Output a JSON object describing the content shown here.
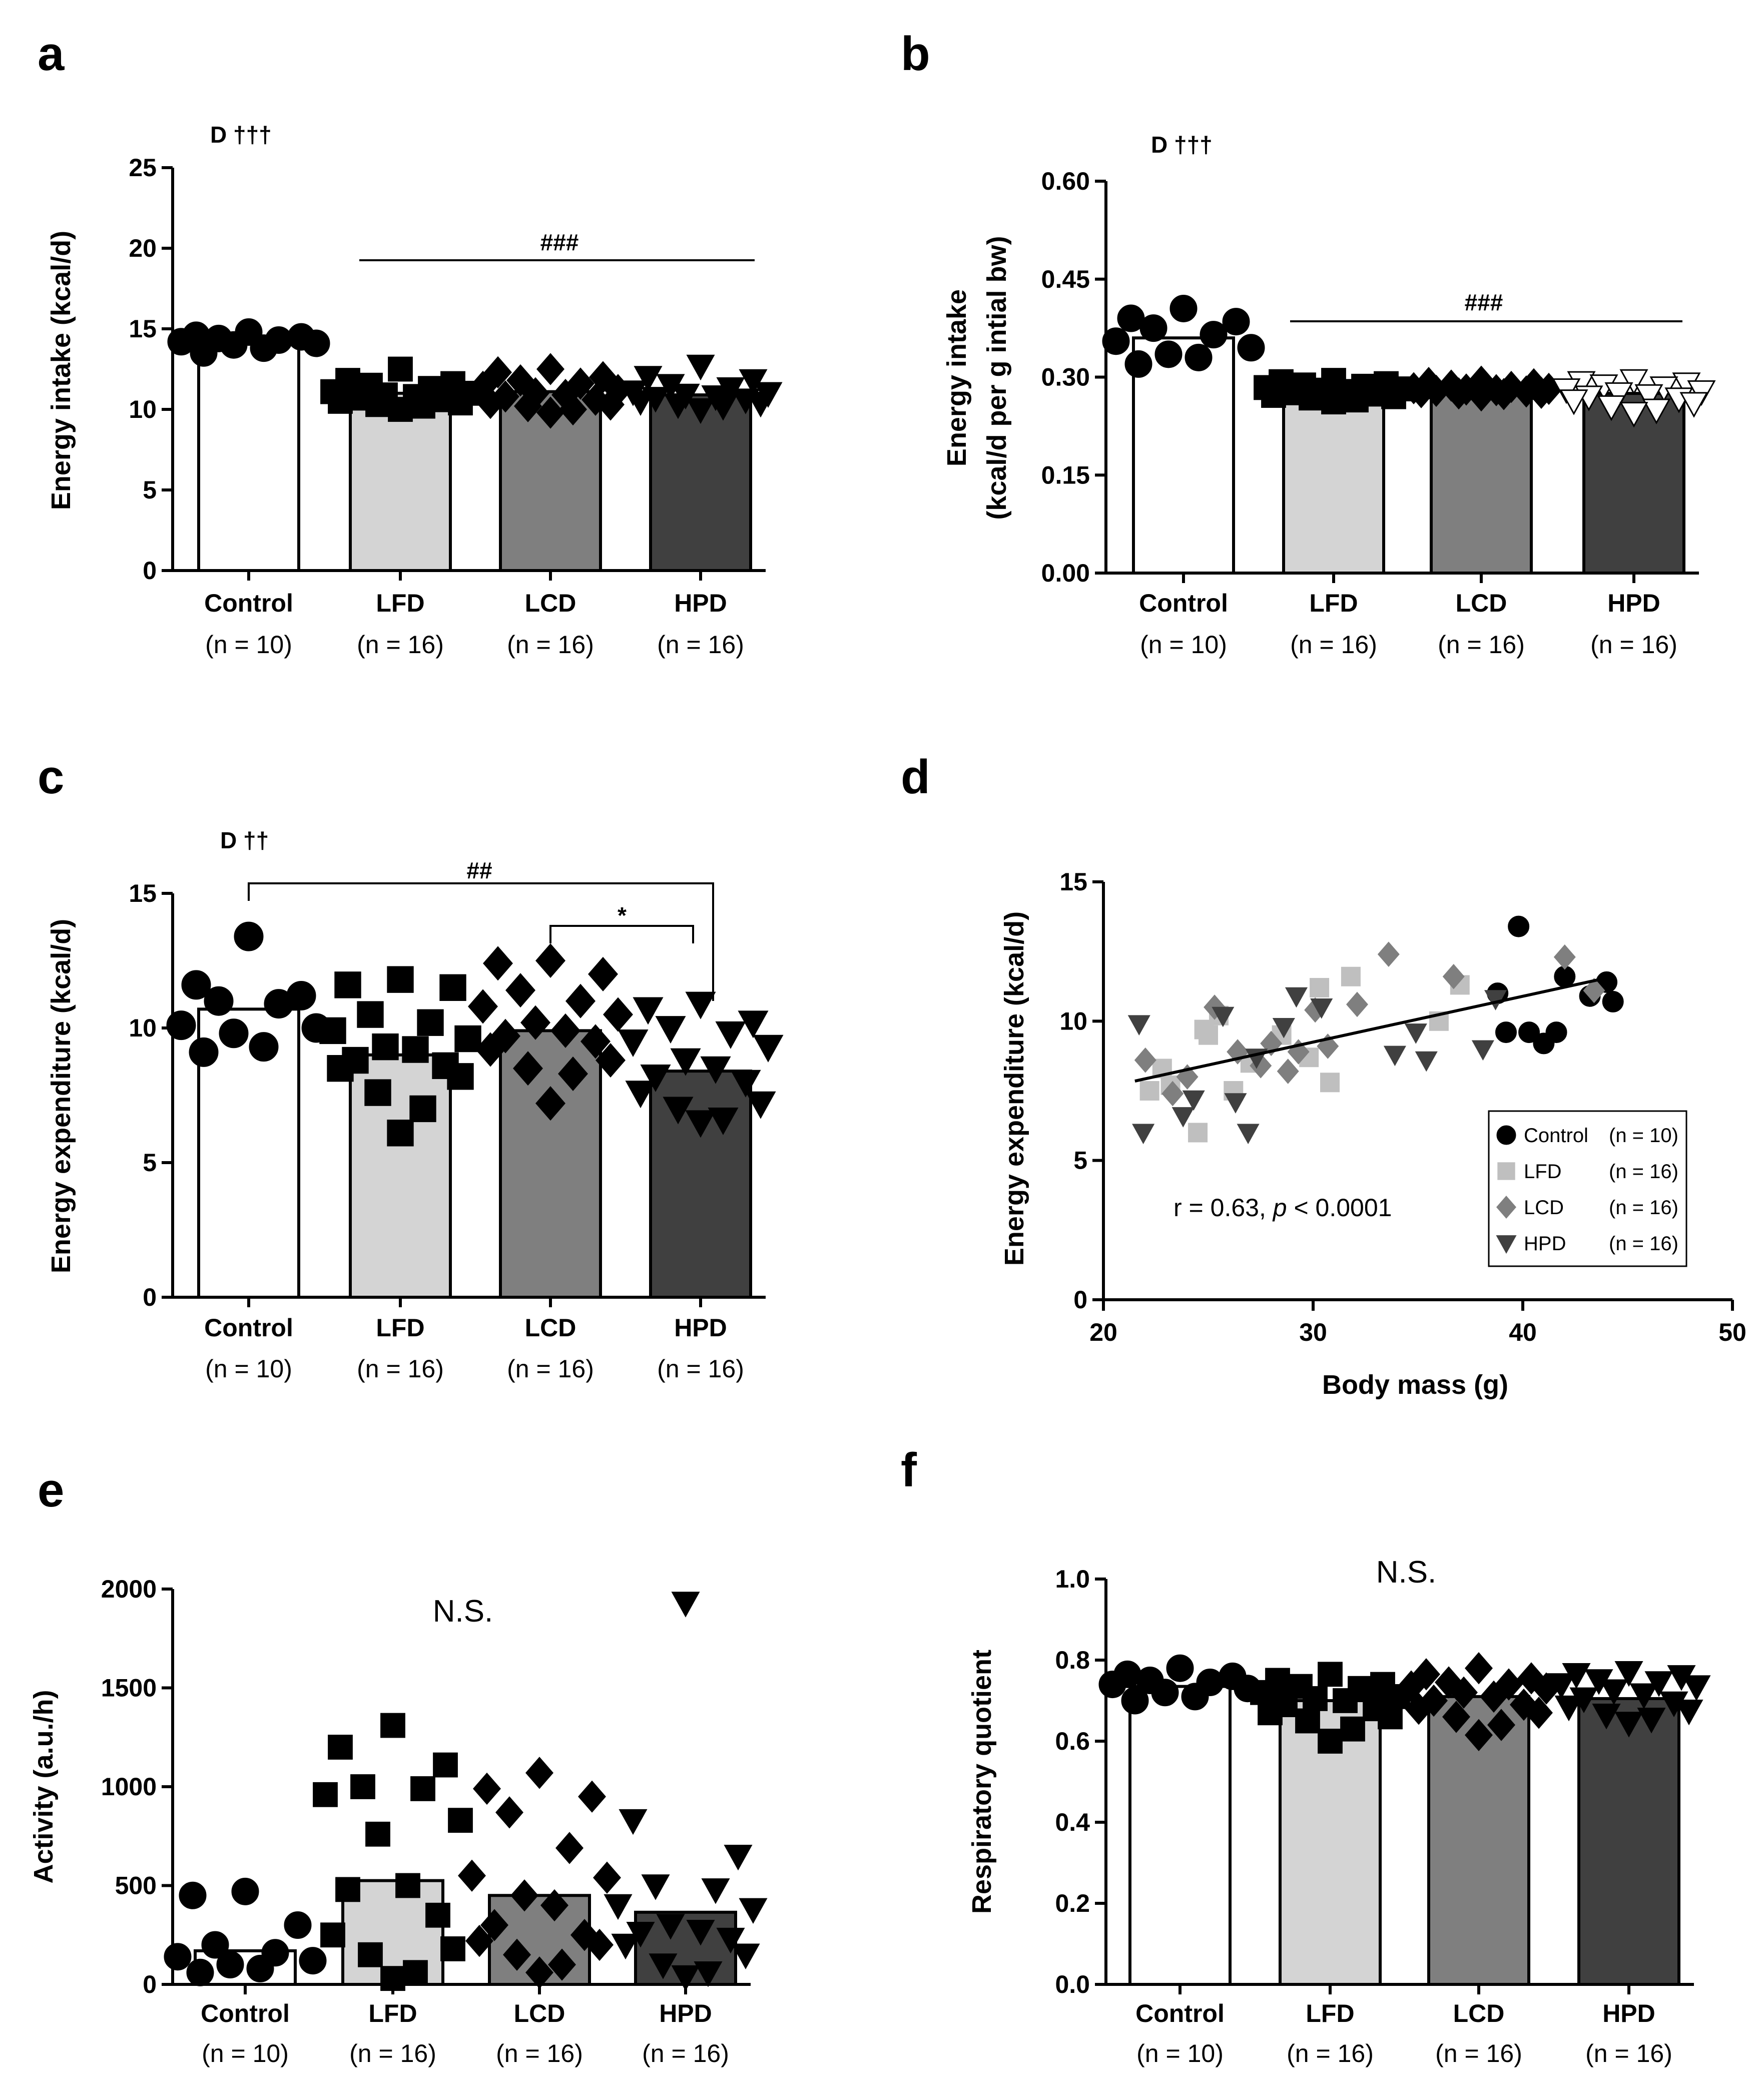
{
  "n_labels": [
    "(n = 10)",
    "(n = 16)",
    "(n = 16)",
    "(n = 16)"
  ],
  "chart_data": [
    {
      "id": "a",
      "panel_letter": "a",
      "type": "bar",
      "categories": [
        "Control",
        "LFD",
        "LCD",
        "HPD"
      ],
      "values": [
        14.2,
        11.0,
        11.1,
        10.9
      ],
      "points": [
        [
          14.8,
          14.6,
          14.5,
          14.4,
          14.3,
          14.2,
          14.1,
          14.0,
          13.8,
          13.5
        ],
        [
          12.5,
          11.8,
          11.6,
          11.5,
          11.3,
          11.1,
          11.0,
          10.9,
          10.8,
          10.7,
          10.6,
          10.5,
          10.4,
          10.3,
          10.2,
          10.0
        ],
        [
          12.5,
          12.3,
          12.0,
          11.8,
          11.6,
          11.4,
          11.2,
          11.0,
          10.9,
          10.8,
          10.6,
          10.4,
          10.3,
          10.2,
          10.0,
          9.8
        ],
        [
          12.7,
          12.0,
          11.8,
          11.5,
          11.3,
          11.1,
          11.0,
          10.9,
          10.8,
          10.7,
          10.6,
          10.5,
          10.4,
          10.3,
          10.2,
          10.0
        ]
      ],
      "ylabel": "Energy intake (kcal/d)",
      "ylim": [
        0,
        25
      ],
      "yticks": [
        "0",
        "5",
        "10",
        "15",
        "20",
        "25"
      ],
      "markers": [
        "circle",
        "square",
        "diamond",
        "triangle-down"
      ],
      "bar_colors": [
        "#ffffff",
        "#d4d4d4",
        "#7f7f7f",
        "#404040"
      ],
      "point_colors": [
        "#000000",
        "#000000",
        "#000000",
        "#000000"
      ],
      "corner_annotation": "D †††",
      "bracket_label": "###"
    },
    {
      "id": "b",
      "panel_letter": "b",
      "type": "bar",
      "categories": [
        "Control",
        "LFD",
        "LCD",
        "HPD"
      ],
      "values": [
        0.36,
        0.28,
        0.28,
        0.275
      ],
      "points": [
        [
          0.405,
          0.39,
          0.385,
          0.375,
          0.365,
          0.355,
          0.345,
          0.335,
          0.33,
          0.32
        ],
        [
          0.295,
          0.293,
          0.29,
          0.288,
          0.286,
          0.284,
          0.282,
          0.28,
          0.278,
          0.276,
          0.274,
          0.272,
          0.27,
          0.268,
          0.265,
          0.262
        ],
        [
          0.293,
          0.291,
          0.289,
          0.287,
          0.285,
          0.283,
          0.282,
          0.281,
          0.28,
          0.279,
          0.278,
          0.277,
          0.276,
          0.275,
          0.274,
          0.272
        ],
        [
          0.295,
          0.292,
          0.29,
          0.287,
          0.284,
          0.281,
          0.278,
          0.275,
          0.272,
          0.27,
          0.267,
          0.264,
          0.26,
          0.255,
          0.25,
          0.245
        ]
      ],
      "ylabel": "Energy intake",
      "ylabel2": "(kcal/d per g intial bw)",
      "ylim": [
        0,
        0.6
      ],
      "yticks": [
        "0.00",
        "0.15",
        "0.30",
        "0.45",
        "0.60"
      ],
      "markers": [
        "circle",
        "square",
        "diamond",
        "triangle-down"
      ],
      "bar_colors": [
        "#ffffff",
        "#d4d4d4",
        "#7f7f7f",
        "#404040"
      ],
      "point_colors": [
        "#000000",
        "#000000",
        "#000000",
        "#ffffff"
      ],
      "corner_annotation": "D †††",
      "bracket_label": "###"
    },
    {
      "id": "c",
      "panel_letter": "c",
      "type": "bar",
      "categories": [
        "Control",
        "LFD",
        "LCD",
        "HPD"
      ],
      "values": [
        10.7,
        9.0,
        9.9,
        8.4
      ],
      "points": [
        [
          13.4,
          11.6,
          11.2,
          11.0,
          10.9,
          10.1,
          10.0,
          9.8,
          9.3,
          9.1
        ],
        [
          11.8,
          11.6,
          11.5,
          10.5,
          10.2,
          9.9,
          9.6,
          9.3,
          9.2,
          8.8,
          8.6,
          8.5,
          8.2,
          7.6,
          7.0,
          6.1
        ],
        [
          12.5,
          12.4,
          12.0,
          11.4,
          11.0,
          10.8,
          10.5,
          10.2,
          9.9,
          9.7,
          9.5,
          9.2,
          8.8,
          8.5,
          8.3,
          7.2
        ],
        [
          10.9,
          10.7,
          10.2,
          10.0,
          9.8,
          9.5,
          9.3,
          8.8,
          8.5,
          8.2,
          8.0,
          7.6,
          7.2,
          7.0,
          6.6,
          6.5
        ]
      ],
      "ylabel": "Energy expenditure (kcal/d)",
      "ylim": [
        0,
        15
      ],
      "yticks": [
        "0",
        "5",
        "10",
        "15"
      ],
      "markers": [
        "circle",
        "square",
        "diamond",
        "triangle-down"
      ],
      "bar_colors": [
        "#ffffff",
        "#d4d4d4",
        "#7f7f7f",
        "#404040"
      ],
      "point_colors": [
        "#000000",
        "#000000",
        "#000000",
        "#000000"
      ],
      "corner_annotation": "D ††",
      "bracket_label": "##",
      "bracket2_label": "*"
    },
    {
      "id": "d",
      "panel_letter": "d",
      "type": "scatter",
      "xlabel": "Body mass (g)",
      "ylabel": "Energy expenditure (kcal/d)",
      "xlim": [
        20,
        50
      ],
      "ylim": [
        0,
        15
      ],
      "xticks": [
        "20",
        "30",
        "40",
        "50"
      ],
      "yticks": [
        "0",
        "5",
        "10",
        "15"
      ],
      "annotation_prefix": "r = 0.63, ",
      "annotation_p": "p",
      "annotation_suffix": " < 0.0001",
      "fit_line": {
        "x": [
          21.5,
          44.0
        ],
        "y": [
          7.85,
          11.55
        ]
      },
      "series": [
        {
          "name": "Control",
          "legend_n": "(n = 10)",
          "marker": "circle",
          "color": "#000000",
          "x": [
            38.8,
            39.2,
            39.8,
            40.3,
            41.0,
            41.6,
            42.0,
            43.2,
            44.0,
            44.3
          ],
          "y": [
            11.0,
            9.6,
            13.4,
            9.6,
            9.2,
            9.6,
            11.6,
            10.9,
            11.4,
            10.7
          ]
        },
        {
          "name": "LFD",
          "legend_n": "(n = 16)",
          "marker": "square",
          "color": "#bfbfbf",
          "x": [
            22.2,
            22.8,
            23.2,
            24.5,
            25.0,
            25.5,
            26.2,
            27.0,
            28.5,
            29.8,
            30.3,
            30.8,
            31.8,
            36.0,
            37.0,
            24.8
          ],
          "y": [
            7.5,
            8.3,
            7.7,
            6.0,
            9.5,
            10.2,
            7.5,
            8.5,
            9.5,
            8.7,
            11.2,
            7.8,
            11.6,
            10.0,
            11.3,
            9.7
          ]
        },
        {
          "name": "LCD",
          "legend_n": "(n = 16)",
          "marker": "diamond",
          "color": "#7f7f7f",
          "x": [
            22.0,
            23.3,
            24.0,
            25.3,
            26.4,
            27.5,
            28.0,
            28.8,
            29.3,
            30.1,
            30.7,
            32.1,
            33.6,
            36.7,
            42.0,
            43.4
          ],
          "y": [
            8.6,
            7.4,
            8.0,
            10.5,
            8.9,
            8.4,
            9.2,
            8.2,
            8.9,
            10.4,
            9.1,
            10.6,
            12.4,
            11.6,
            12.3,
            11.1
          ]
        },
        {
          "name": "HPD",
          "legend_n": "(n = 16)",
          "marker": "triangle-down",
          "color": "#404040",
          "x": [
            21.7,
            21.9,
            23.8,
            24.3,
            26.3,
            26.9,
            27.3,
            28.6,
            29.2,
            30.4,
            33.9,
            34.9,
            35.4,
            38.1,
            25.7,
            38.7
          ],
          "y": [
            9.9,
            6.0,
            6.6,
            7.2,
            7.1,
            6.0,
            8.7,
            9.8,
            10.9,
            10.5,
            8.8,
            9.6,
            8.6,
            9.0,
            10.2,
            10.8
          ]
        }
      ]
    },
    {
      "id": "e",
      "panel_letter": "e",
      "type": "bar",
      "categories": [
        "Control",
        "LFD",
        "LCD",
        "HPD"
      ],
      "values": [
        170,
        525,
        450,
        365
      ],
      "points": [
        [
          470,
          450,
          300,
          200,
          160,
          140,
          120,
          100,
          80,
          60
        ],
        [
          1310,
          1200,
          1110,
          1000,
          990,
          960,
          830,
          760,
          500,
          480,
          350,
          250,
          180,
          150,
          60,
          30
        ],
        [
          1070,
          990,
          950,
          870,
          690,
          550,
          540,
          450,
          400,
          300,
          250,
          220,
          200,
          150,
          100,
          60
        ],
        [
          1930,
          830,
          650,
          500,
          480,
          400,
          380,
          300,
          270,
          260,
          230,
          200,
          150,
          100,
          60,
          40
        ]
      ],
      "ylabel": "Activity (a.u./h)",
      "ylim": [
        0,
        2000
      ],
      "yticks": [
        "0",
        "500",
        "1000",
        "1500",
        "2000"
      ],
      "markers": [
        "circle",
        "square",
        "diamond",
        "triangle-down"
      ],
      "bar_colors": [
        "#ffffff",
        "#d4d4d4",
        "#7f7f7f",
        "#404040"
      ],
      "point_colors": [
        "#000000",
        "#000000",
        "#000000",
        "#000000"
      ],
      "ns_label": "N.S."
    },
    {
      "id": "f",
      "panel_letter": "f",
      "type": "bar",
      "categories": [
        "Control",
        "LFD",
        "LCD",
        "HPD"
      ],
      "values": [
        0.735,
        0.7,
        0.71,
        0.705
      ],
      "points": [
        [
          0.78,
          0.765,
          0.76,
          0.75,
          0.745,
          0.74,
          0.73,
          0.72,
          0.71,
          0.7
        ],
        [
          0.765,
          0.75,
          0.74,
          0.735,
          0.73,
          0.72,
          0.71,
          0.705,
          0.7,
          0.69,
          0.68,
          0.67,
          0.66,
          0.65,
          0.63,
          0.6
        ],
        [
          0.78,
          0.765,
          0.755,
          0.745,
          0.74,
          0.735,
          0.73,
          0.72,
          0.71,
          0.7,
          0.69,
          0.68,
          0.67,
          0.66,
          0.64,
          0.615
        ],
        [
          0.77,
          0.765,
          0.76,
          0.75,
          0.745,
          0.74,
          0.735,
          0.725,
          0.715,
          0.705,
          0.695,
          0.685,
          0.675,
          0.665,
          0.655,
          0.645
        ]
      ],
      "ylabel": "Respiratory quotient",
      "ylim": [
        0,
        1
      ],
      "yticks": [
        "0.0",
        "0.2",
        "0.4",
        "0.6",
        "0.8",
        "1.0"
      ],
      "markers": [
        "circle",
        "square",
        "diamond",
        "triangle-down"
      ],
      "bar_colors": [
        "#ffffff",
        "#d4d4d4",
        "#7f7f7f",
        "#404040"
      ],
      "point_colors": [
        "#000000",
        "#000000",
        "#000000",
        "#000000"
      ],
      "ns_label": "N.S."
    }
  ]
}
